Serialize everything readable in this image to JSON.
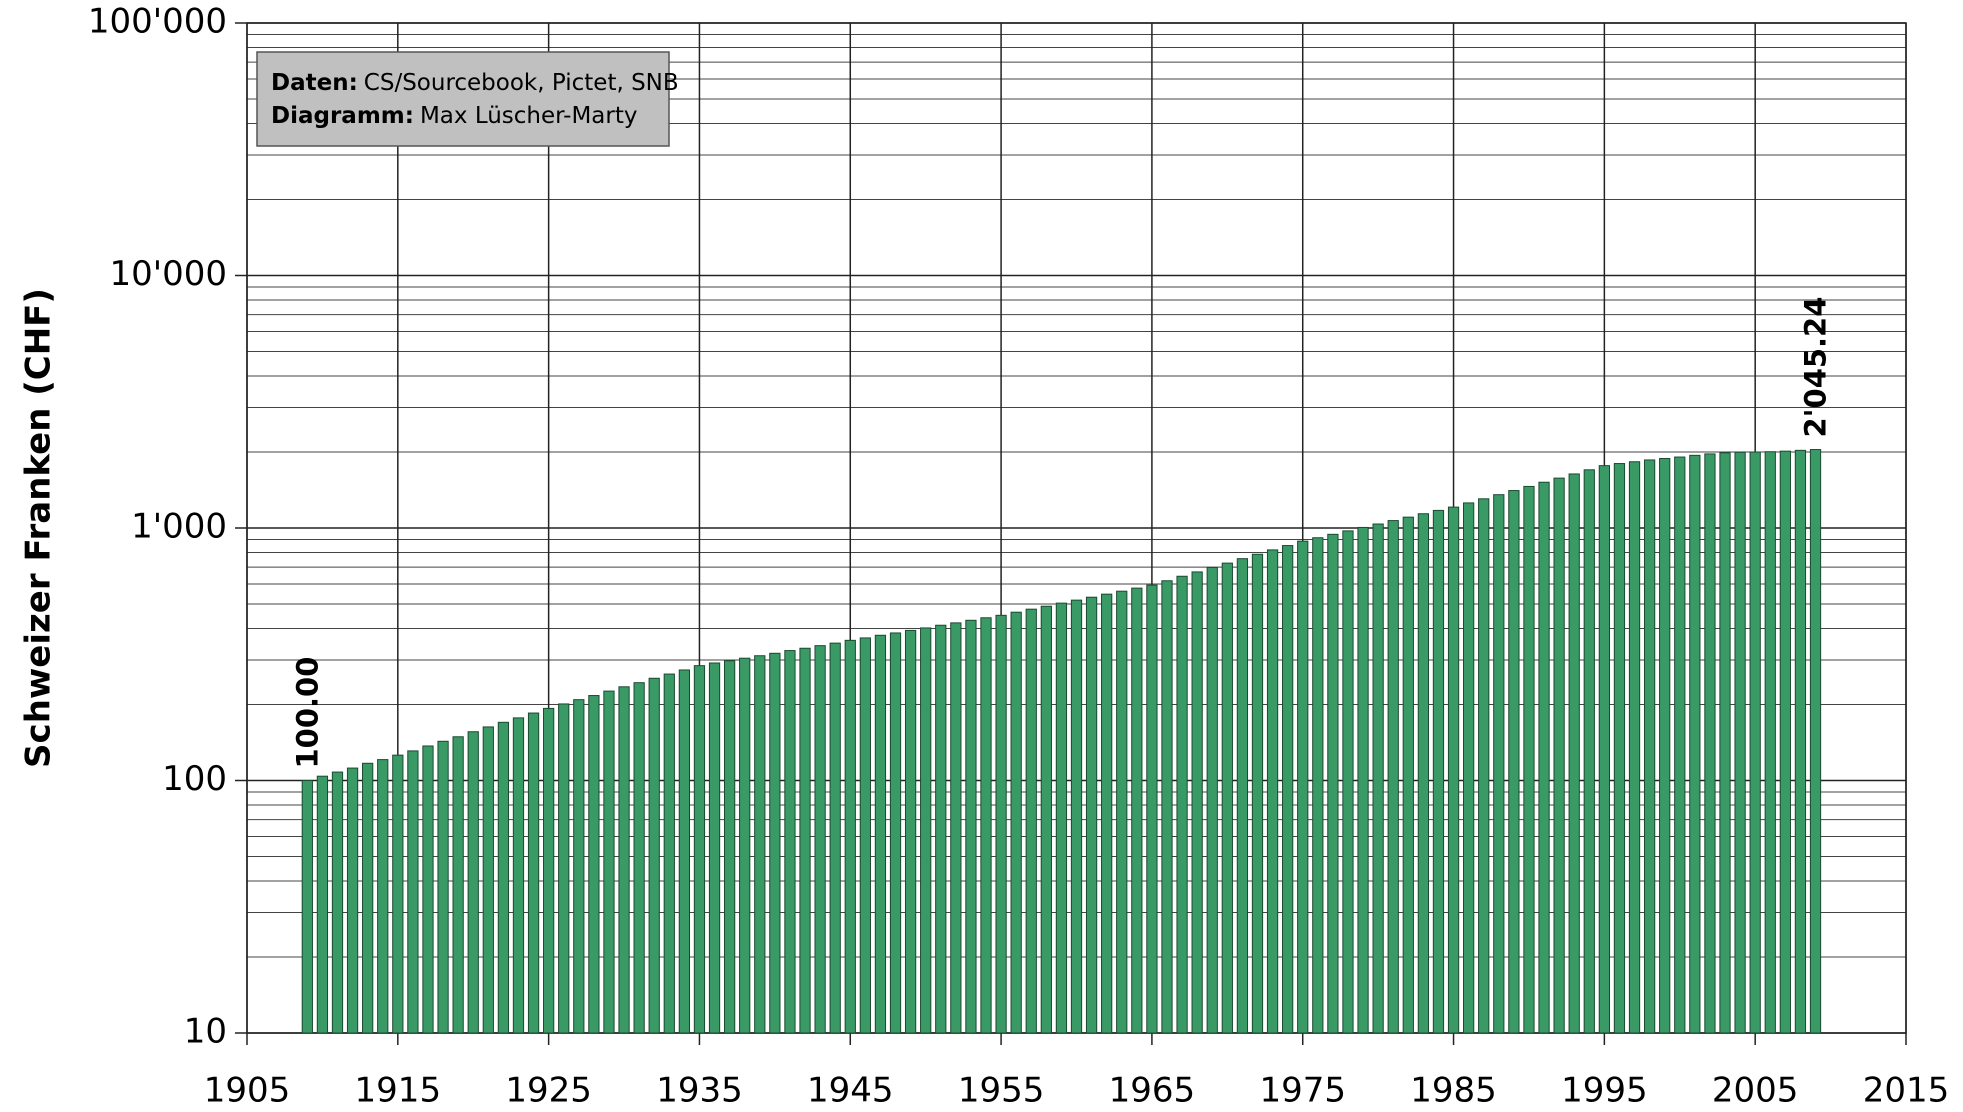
{
  "chart_data": {
    "type": "bar",
    "ylabel": "Schweizer Franken (CHF)",
    "annotation": [
      {
        "label": "Daten:",
        "text": "CS/Sourcebook, Pictet, SNB"
      },
      {
        "label": "Diagramm:",
        "text": "Max Lüscher-Marty"
      }
    ],
    "x": [
      1909,
      1910,
      1911,
      1912,
      1913,
      1914,
      1915,
      1916,
      1917,
      1918,
      1919,
      1920,
      1921,
      1922,
      1923,
      1924,
      1925,
      1926,
      1927,
      1928,
      1929,
      1930,
      1931,
      1932,
      1933,
      1934,
      1935,
      1936,
      1937,
      1938,
      1939,
      1940,
      1941,
      1942,
      1943,
      1944,
      1945,
      1946,
      1947,
      1948,
      1949,
      1950,
      1951,
      1952,
      1953,
      1954,
      1955,
      1956,
      1957,
      1958,
      1959,
      1960,
      1961,
      1962,
      1963,
      1964,
      1965,
      1966,
      1967,
      1968,
      1969,
      1970,
      1971,
      1972,
      1973,
      1974,
      1975,
      1976,
      1977,
      1978,
      1979,
      1980,
      1981,
      1982,
      1983,
      1984,
      1985,
      1986,
      1987,
      1988,
      1989,
      1990,
      1991,
      1992,
      1993,
      1994,
      1995,
      1996,
      1997,
      1998,
      1999,
      2000,
      2001,
      2002,
      2003,
      2004,
      2005,
      2006,
      2007,
      2008,
      2009
    ],
    "values": [
      100,
      104,
      108,
      112,
      117,
      121,
      126,
      131,
      137,
      143,
      149,
      156,
      163,
      170,
      177,
      185,
      193,
      201,
      209,
      217,
      226,
      235,
      244,
      254,
      264,
      274,
      285,
      292,
      298,
      305,
      312,
      319,
      327,
      334,
      342,
      350,
      359,
      367,
      376,
      384,
      393,
      402,
      412,
      421,
      431,
      441,
      451,
      464,
      477,
      490,
      504,
      518,
      532,
      547,
      562,
      578,
      594,
      618,
      644,
      670,
      698,
      726,
      756,
      787,
      819,
      852,
      887,
      915,
      944,
      974,
      1005,
      1037,
      1070,
      1104,
      1139,
      1174,
      1210,
      1257,
      1305,
      1355,
      1407,
      1461,
      1518,
      1576,
      1637,
      1700,
      1766,
      1800,
      1830,
      1860,
      1885,
      1910,
      1940,
      1965,
      1985,
      1995,
      2000,
      2005,
      2015,
      2030,
      2045.24
    ],
    "value_labels": [
      "100.00",
      null,
      null,
      null,
      null,
      null,
      null,
      null,
      null,
      null,
      null,
      null,
      null,
      null,
      null,
      null,
      null,
      null,
      null,
      null,
      null,
      null,
      null,
      null,
      null,
      null,
      null,
      null,
      null,
      null,
      null,
      null,
      null,
      null,
      null,
      null,
      null,
      null,
      null,
      null,
      null,
      null,
      null,
      null,
      null,
      null,
      null,
      null,
      null,
      null,
      null,
      null,
      null,
      null,
      null,
      null,
      null,
      null,
      null,
      null,
      null,
      null,
      null,
      null,
      null,
      null,
      null,
      null,
      null,
      null,
      null,
      null,
      null,
      null,
      null,
      null,
      null,
      null,
      null,
      null,
      null,
      null,
      null,
      null,
      null,
      null,
      null,
      null,
      null,
      null,
      null,
      null,
      null,
      null,
      null,
      null,
      null,
      null,
      null,
      null,
      "2'045.24"
    ],
    "color": "#3a9a66",
    "xlim": [
      1905,
      2015
    ],
    "xticks": [
      1905,
      1915,
      1925,
      1935,
      1945,
      1955,
      1965,
      1975,
      1985,
      1995,
      2005,
      2015
    ],
    "ylim": [
      10,
      100000
    ],
    "yticks": [
      10,
      100,
      {
        "value": 1000,
        "label": "1'000"
      },
      {
        "value": 10000,
        "label": "10'000"
      },
      {
        "value": 100000,
        "label": "100'000"
      }
    ],
    "log_scale": true,
    "grid": true,
    "minor_grid": true
  }
}
